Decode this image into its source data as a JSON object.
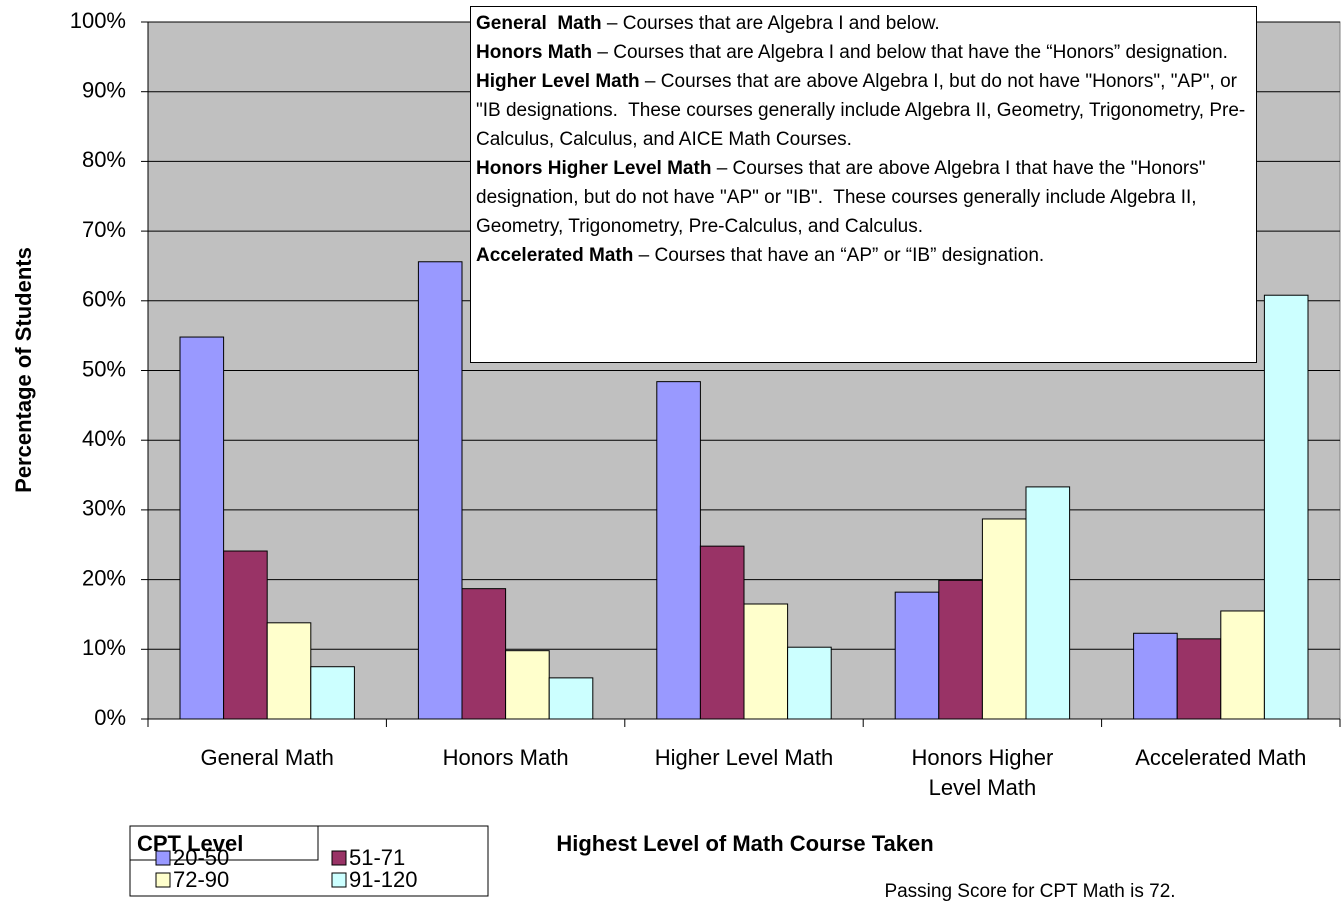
{
  "chart_data": {
    "type": "bar",
    "categories": [
      "General Math",
      "Honors Math",
      "Higher Level Math",
      "Honors Higher Level Math",
      "Accelerated Math"
    ],
    "series": [
      {
        "name": "20-50",
        "color": "#9999ff",
        "values": [
          54.8,
          65.6,
          48.4,
          18.2,
          12.3
        ]
      },
      {
        "name": "51-71",
        "color": "#993366",
        "values": [
          24.1,
          18.7,
          24.8,
          19.9,
          11.5
        ]
      },
      {
        "name": "72-90",
        "color": "#ffffcc",
        "values": [
          13.8,
          9.8,
          16.5,
          28.7,
          15.5
        ]
      },
      {
        "name": "91-120",
        "color": "#ccffff",
        "values": [
          7.5,
          5.9,
          10.3,
          33.3,
          60.8
        ]
      }
    ],
    "ylim": [
      0,
      100
    ],
    "yticks": [
      {
        "value": 0,
        "label": "0%"
      },
      {
        "value": 10,
        "label": "10%"
      },
      {
        "value": 20,
        "label": "20%"
      },
      {
        "value": 30,
        "label": "30%"
      },
      {
        "value": 40,
        "label": "40%"
      },
      {
        "value": 50,
        "label": "50%"
      },
      {
        "value": 60,
        "label": "60%"
      },
      {
        "value": 70,
        "label": "70%"
      },
      {
        "value": 80,
        "label": "80%"
      },
      {
        "value": 90,
        "label": "90%"
      },
      {
        "value": 100,
        "label": "100%"
      }
    ],
    "grid": true,
    "plot_background": "#c0c0c0",
    "y_axis_label": "Percentage of Students",
    "x_axis_label": "Highest Level of Math Course Taken",
    "legend_title": "CPT Level",
    "legend_position": "bottom-left",
    "note": "Passing Score for CPT Math is 72.",
    "definitions": [
      {
        "term": "General  Math",
        "text": " – Courses that are Algebra I and below."
      },
      {
        "term": "Honors Math",
        "text": " – Courses that are Algebra I and below that have the “Honors” designation."
      },
      {
        "term": "Higher Level Math",
        "text": " – Courses that are above Algebra I, but do not have \"Honors\", \"AP\", or \"IB designations.  These courses generally include Algebra II, Geometry, Trigonometry, Pre-Calculus, Calculus, and AICE Math Courses."
      },
      {
        "term": "Honors Higher Level Math",
        "text": " – Courses that are above Algebra I that have the \"Honors\" designation, but do not have \"AP\" or \"IB\".  These courses generally include Algebra II, Geometry, Trigonometry, Pre-Calculus, and Calculus."
      },
      {
        "term": "Accelerated Math",
        "text": " – Courses that have an “AP” or “IB” designation."
      }
    ]
  }
}
